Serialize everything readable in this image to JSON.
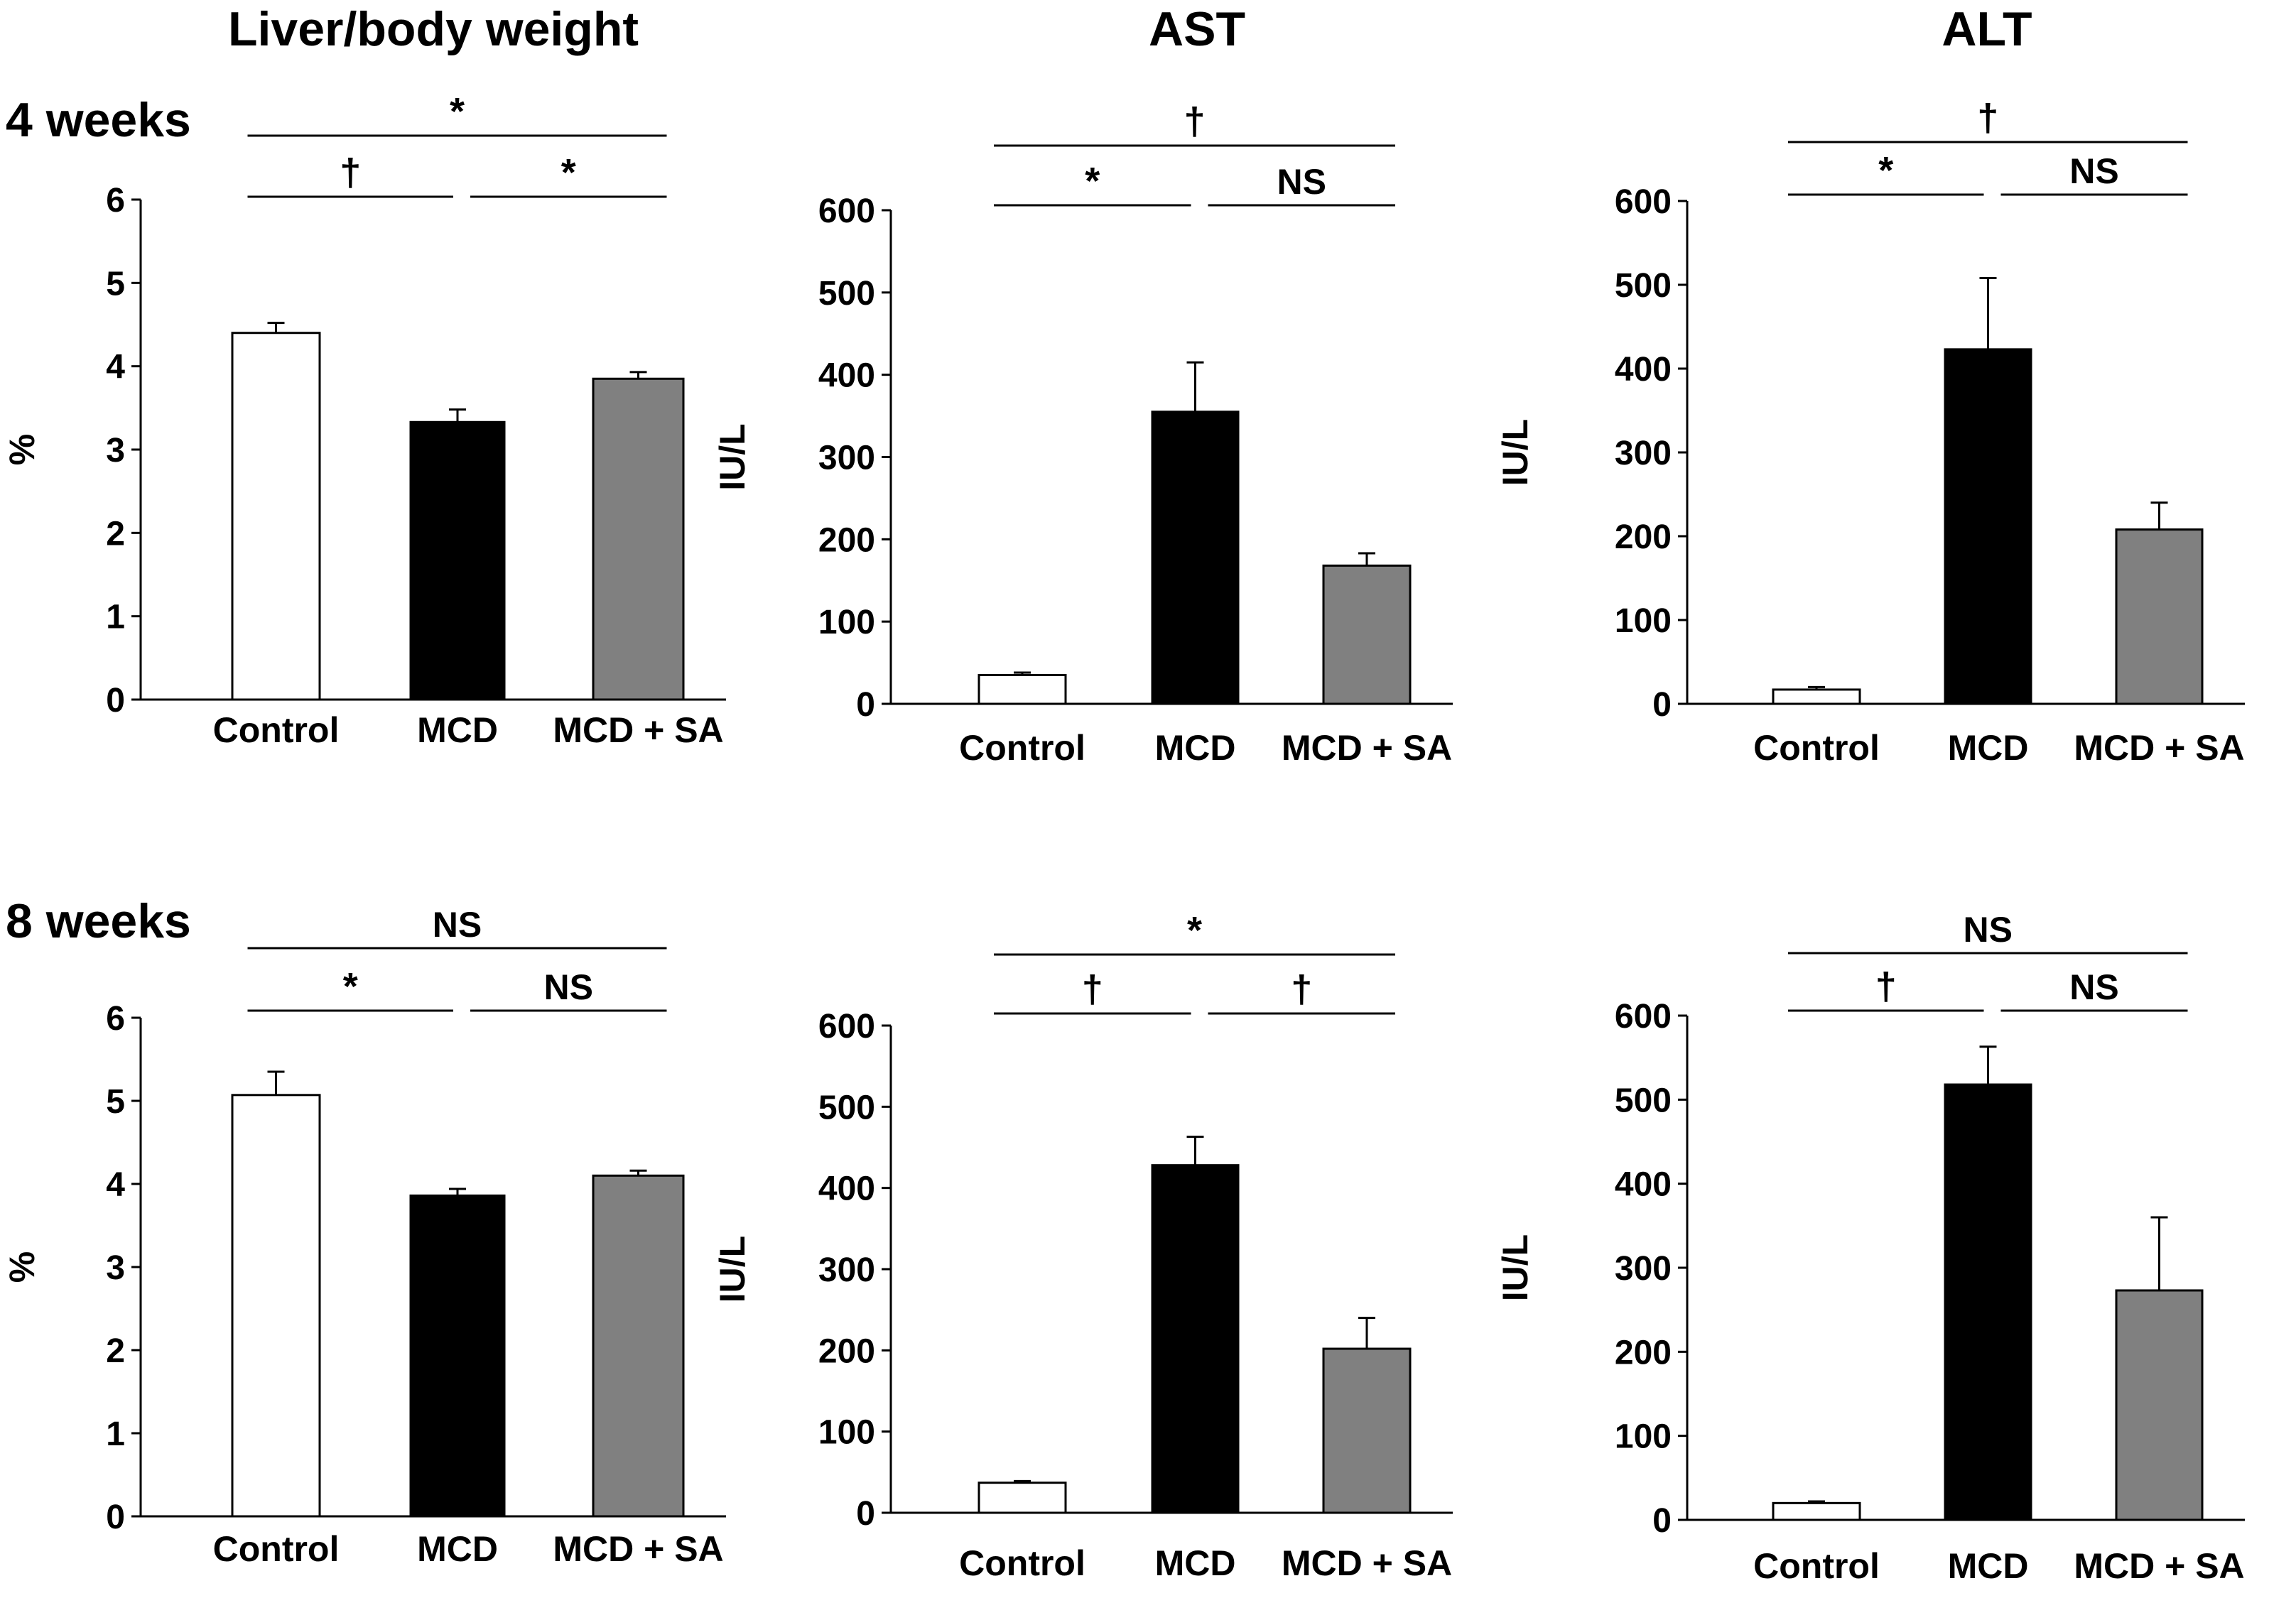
{
  "column_titles": [
    "Liver/body weight",
    "AST",
    "ALT"
  ],
  "row_labels": [
    "4 weeks",
    "8 weeks"
  ],
  "colors": {
    "Control": "#ffffff",
    "MCD": "#000000",
    "MCD + SA": "#808080",
    "axis": "#000000"
  },
  "chart_data": [
    {
      "type": "bar",
      "title": "Liver/body weight",
      "row": "4 weeks",
      "ylabel": "%",
      "categories": [
        "Control",
        "MCD",
        "MCD + SA"
      ],
      "values": [
        4.4,
        3.33,
        3.85
      ],
      "errors": [
        0.12,
        0.15,
        0.08
      ],
      "ylim": [
        0,
        6
      ],
      "yticks": [
        "0",
        "1",
        "2",
        "3",
        "4",
        "5",
        "6"
      ],
      "significance": [
        {
          "from": 0,
          "to": 2,
          "label": "*"
        },
        {
          "from": 0,
          "to": 1,
          "label": "†"
        },
        {
          "from": 1,
          "to": 2,
          "label": "*"
        }
      ]
    },
    {
      "type": "bar",
      "title": "AST",
      "row": "4 weeks",
      "ylabel": "IU/L",
      "categories": [
        "Control",
        "MCD",
        "MCD + SA"
      ],
      "values": [
        35,
        355,
        168
      ],
      "errors": [
        3,
        60,
        15
      ],
      "ylim": [
        0,
        600
      ],
      "yticks": [
        "0",
        "100",
        "200",
        "300",
        "400",
        "500",
        "600"
      ],
      "significance": [
        {
          "from": 0,
          "to": 2,
          "label": "†"
        },
        {
          "from": 0,
          "to": 1,
          "label": "*"
        },
        {
          "from": 1,
          "to": 2,
          "label": "NS"
        }
      ]
    },
    {
      "type": "bar",
      "title": "ALT",
      "row": "4 weeks",
      "ylabel": "IU/L",
      "categories": [
        "Control",
        "MCD",
        "MCD + SA"
      ],
      "values": [
        17,
        423,
        208
      ],
      "errors": [
        3,
        85,
        32
      ],
      "ylim": [
        0,
        600
      ],
      "yticks": [
        "0",
        "100",
        "200",
        "300",
        "400",
        "500",
        "600"
      ],
      "significance": [
        {
          "from": 0,
          "to": 2,
          "label": "†"
        },
        {
          "from": 0,
          "to": 1,
          "label": "*"
        },
        {
          "from": 1,
          "to": 2,
          "label": "NS"
        }
      ]
    },
    {
      "type": "bar",
      "title": "Liver/body weight",
      "row": "8 weeks",
      "ylabel": "%",
      "categories": [
        "Control",
        "MCD",
        "MCD + SA"
      ],
      "values": [
        5.07,
        3.86,
        4.1
      ],
      "errors": [
        0.28,
        0.08,
        0.06
      ],
      "ylim": [
        0,
        6
      ],
      "yticks": [
        "0",
        "1",
        "2",
        "3",
        "4",
        "5",
        "6"
      ],
      "significance": [
        {
          "from": 0,
          "to": 2,
          "label": "NS"
        },
        {
          "from": 0,
          "to": 1,
          "label": "*"
        },
        {
          "from": 1,
          "to": 2,
          "label": "NS"
        }
      ]
    },
    {
      "type": "bar",
      "title": "AST",
      "row": "8 weeks",
      "ylabel": "IU/L",
      "categories": [
        "Control",
        "MCD",
        "MCD + SA"
      ],
      "values": [
        37,
        428,
        202
      ],
      "errors": [
        2,
        35,
        38
      ],
      "ylim": [
        0,
        600
      ],
      "yticks": [
        "0",
        "100",
        "200",
        "300",
        "400",
        "500",
        "600"
      ],
      "significance": [
        {
          "from": 0,
          "to": 2,
          "label": "*"
        },
        {
          "from": 0,
          "to": 1,
          "label": "†"
        },
        {
          "from": 1,
          "to": 2,
          "label": "†"
        }
      ]
    },
    {
      "type": "bar",
      "title": "ALT",
      "row": "8 weeks",
      "ylabel": "IU/L",
      "categories": [
        "Control",
        "MCD",
        "MCD + SA"
      ],
      "values": [
        20,
        518,
        273
      ],
      "errors": [
        2,
        45,
        87
      ],
      "ylim": [
        0,
        600
      ],
      "yticks": [
        "0",
        "100",
        "200",
        "300",
        "400",
        "500",
        "600"
      ],
      "significance": [
        {
          "from": 0,
          "to": 2,
          "label": "NS"
        },
        {
          "from": 0,
          "to": 1,
          "label": "†"
        },
        {
          "from": 1,
          "to": 2,
          "label": "NS"
        }
      ]
    }
  ]
}
